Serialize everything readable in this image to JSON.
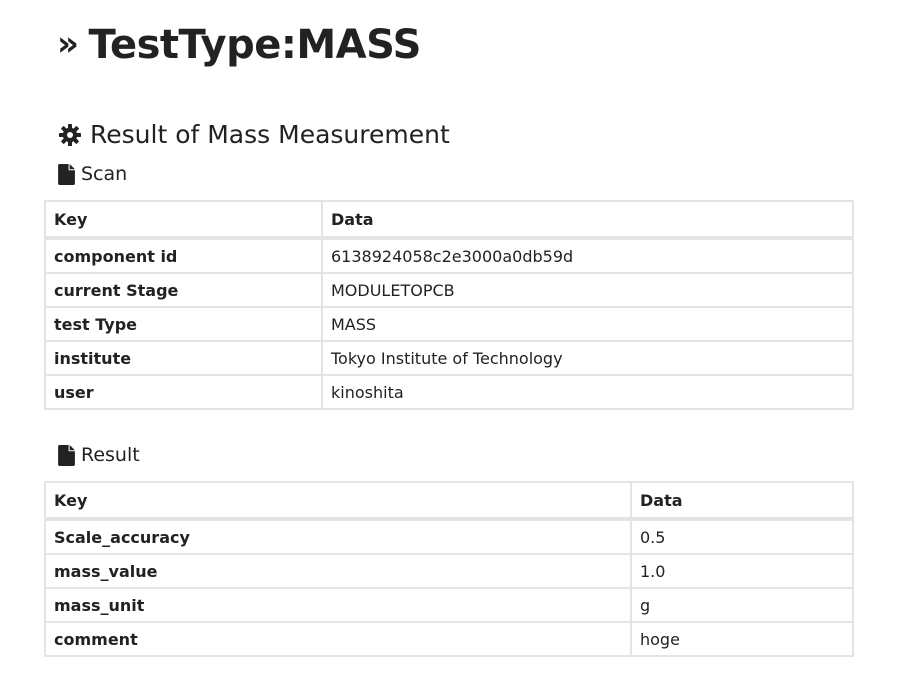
{
  "page": {
    "title": "TestType:MASS"
  },
  "section": {
    "heading": "Result of Mass Measurement"
  },
  "icons": {
    "title": "double-chevron-right-icon",
    "section": "gear-icon",
    "subsection": "file-icon"
  },
  "scan": {
    "heading": "Scan",
    "columns": [
      "Key",
      "Data"
    ],
    "rows": [
      {
        "key": "component id",
        "value": "6138924058c2e3000a0db59d"
      },
      {
        "key": "current Stage",
        "value": "MODULETOPCB"
      },
      {
        "key": "test Type",
        "value": "MASS"
      },
      {
        "key": "institute",
        "value": "Tokyo Institute of Technology"
      },
      {
        "key": "user",
        "value": "kinoshita"
      }
    ]
  },
  "result": {
    "heading": "Result",
    "columns": [
      "Key",
      "Data"
    ],
    "rows": [
      {
        "key": "Scale_accuracy",
        "value": "0.5"
      },
      {
        "key": "mass_value",
        "value": "1.0"
      },
      {
        "key": "mass_unit",
        "value": "g"
      },
      {
        "key": "comment",
        "value": "hoge"
      }
    ]
  },
  "colors": {
    "text": "#222222",
    "table_border": "#e4e4e4",
    "background": "#ffffff"
  }
}
